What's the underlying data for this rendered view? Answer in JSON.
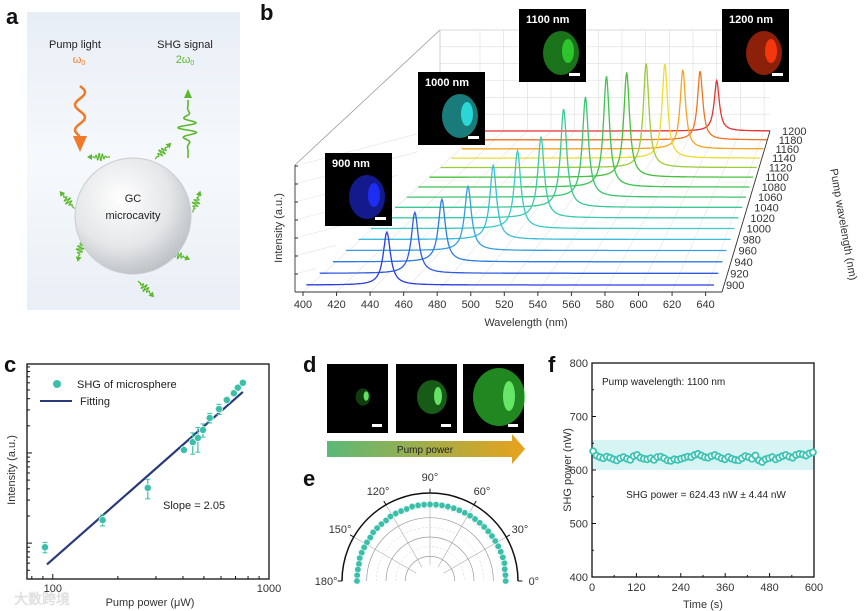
{
  "panel_labels": {
    "a": "a",
    "b": "b",
    "c": "c",
    "d": "d",
    "e": "e",
    "f": "f"
  },
  "panel_a": {
    "pump_label": "Pump light",
    "pump_symbol": "ω",
    "pump_sub": "0",
    "shg_label": "SHG signal",
    "shg_symbol": "2ω",
    "shg_sub": "0",
    "sphere_line1": "GC",
    "sphere_line2": "microcavity",
    "colors": {
      "pump": "#f07a2a",
      "shg": "#5cb82c",
      "background": "#eef3f8"
    }
  },
  "panel_d": {
    "arrow_label": "Pump power",
    "gradient": [
      "#5cb878",
      "#e8a21c"
    ],
    "image_intensity": [
      0.15,
      0.5,
      1.0
    ]
  },
  "watermark": "大数跨境",
  "chart_data": [
    {
      "id": "b",
      "type": "line",
      "subtype": "3d-waterfall",
      "xlabel": "Wavelength (nm)",
      "ylabel": "Pump wavelength (nm)",
      "zlabel": "Intensity (a.u.)",
      "x_ticks": [
        400,
        420,
        440,
        460,
        480,
        500,
        520,
        540,
        560,
        580,
        600,
        620,
        640
      ],
      "y_ticks": [
        900,
        920,
        940,
        960,
        980,
        1000,
        1020,
        1040,
        1060,
        1080,
        1100,
        1120,
        1140,
        1160,
        1180,
        1200
      ],
      "xlim": [
        400,
        645
      ],
      "series": [
        {
          "pump": 900,
          "peak_nm": 450,
          "intensity": 0.42,
          "color": "#2a3ee0"
        },
        {
          "pump": 920,
          "peak_nm": 460,
          "intensity": 0.49,
          "color": "#2d5ce2"
        },
        {
          "pump": 940,
          "peak_nm": 470,
          "intensity": 0.51,
          "color": "#2f7be2"
        },
        {
          "pump": 960,
          "peak_nm": 480,
          "intensity": 0.53,
          "color": "#389ee0"
        },
        {
          "pump": 980,
          "peak_nm": 490,
          "intensity": 0.62,
          "color": "#3bbcda"
        },
        {
          "pump": 1000,
          "peak_nm": 500,
          "intensity": 0.66,
          "color": "#3acbc8"
        },
        {
          "pump": 1020,
          "peak_nm": 510,
          "intensity": 0.7,
          "color": "#3ccbb0"
        },
        {
          "pump": 1040,
          "peak_nm": 520,
          "intensity": 0.86,
          "color": "#3cc894"
        },
        {
          "pump": 1060,
          "peak_nm": 530,
          "intensity": 0.89,
          "color": "#3cc470"
        },
        {
          "pump": 1080,
          "peak_nm": 540,
          "intensity": 1.0,
          "color": "#3ec252"
        },
        {
          "pump": 1100,
          "peak_nm": 550,
          "intensity": 0.96,
          "color": "#48c03c"
        },
        {
          "pump": 1120,
          "peak_nm": 560,
          "intensity": 0.97,
          "color": "#9ccc3a"
        },
        {
          "pump": 1140,
          "peak_nm": 570,
          "intensity": 0.89,
          "color": "#eedc2e"
        },
        {
          "pump": 1160,
          "peak_nm": 580,
          "intensity": 0.76,
          "color": "#f4a424"
        },
        {
          "pump": 1180,
          "peak_nm": 590,
          "intensity": 0.67,
          "color": "#ef7424"
        },
        {
          "pump": 1200,
          "peak_nm": 600,
          "intensity": 0.5,
          "color": "#e63232"
        }
      ],
      "insets": [
        {
          "label": "900 nm",
          "color": "#2030ff"
        },
        {
          "label": "1000 nm",
          "color": "#30e0e0"
        },
        {
          "label": "1100 nm",
          "color": "#30d030"
        },
        {
          "label": "1200 nm",
          "color": "#ff3a10"
        }
      ]
    },
    {
      "id": "c",
      "type": "scatter",
      "xlabel": "Pump power (μW)",
      "ylabel": "Intensity (a.u.)",
      "x_scale": "log",
      "y_scale": "log",
      "xlim": [
        76,
        1000
      ],
      "ylim": [
        0.4,
        97
      ],
      "x_ticks": [
        {
          "v": 100,
          "label": "100"
        },
        {
          "v": 1000,
          "label": "1000"
        }
      ],
      "legend": [
        {
          "label": "SHG of microsphere",
          "kind": "marker"
        },
        {
          "label": "Fitting",
          "kind": "line"
        }
      ],
      "legend_position": "top-left",
      "annotation": "Slope = 2.05",
      "points": [
        {
          "x": 92,
          "y": 0.9,
          "err": 0.12
        },
        {
          "x": 170,
          "y": 1.8,
          "err": 0.25
        },
        {
          "x": 275,
          "y": 4.1,
          "err": 1.0
        },
        {
          "x": 404,
          "y": 10.8,
          "err": 0.5
        },
        {
          "x": 444,
          "y": 13.2,
          "err": 3.5
        },
        {
          "x": 469,
          "y": 14.7,
          "err": 4.5
        },
        {
          "x": 495,
          "y": 18,
          "err": 3
        },
        {
          "x": 532,
          "y": 24.5,
          "err": 3
        },
        {
          "x": 587,
          "y": 30.7,
          "err": 4
        },
        {
          "x": 638,
          "y": 38.7,
          "err": 3
        },
        {
          "x": 688,
          "y": 46,
          "err": 3
        },
        {
          "x": 718,
          "y": 53,
          "err": 3
        },
        {
          "x": 757,
          "y": 60,
          "err": 3
        }
      ],
      "fit": {
        "x": [
          94,
          757
        ],
        "y": [
          0.58,
          47.5
        ]
      },
      "colors": {
        "marker": "#3bbfa8",
        "fit": "#2a3a78"
      }
    },
    {
      "id": "e",
      "type": "scatter",
      "subtype": "polar-half",
      "theta_ticks": [
        {
          "v": 0,
          "label": "0°"
        },
        {
          "v": 30,
          "label": "30°"
        },
        {
          "v": 60,
          "label": "60°"
        },
        {
          "v": 90,
          "label": "90°"
        },
        {
          "v": 120,
          "label": "120°"
        },
        {
          "v": 150,
          "label": "150°"
        },
        {
          "v": 180,
          "label": "180°"
        }
      ],
      "r_max": 1,
      "theta": [
        0,
        4.5,
        9,
        13.5,
        18,
        22.5,
        27,
        31.5,
        36,
        40.5,
        45,
        49.5,
        54,
        58.5,
        63,
        67.5,
        72,
        76.5,
        81,
        85.5,
        90,
        94.5,
        99,
        103.5,
        108,
        112.5,
        117,
        121.5,
        126,
        130.5,
        135,
        139.5,
        144,
        148.5,
        153,
        157.5,
        162,
        166.5,
        171,
        175.5,
        180
      ],
      "r": [
        0.86,
        0.86,
        0.86,
        0.87,
        0.87,
        0.87,
        0.87,
        0.87,
        0.87,
        0.87,
        0.87,
        0.87,
        0.87,
        0.87,
        0.87,
        0.87,
        0.87,
        0.87,
        0.87,
        0.87,
        0.87,
        0.87,
        0.87,
        0.87,
        0.86,
        0.86,
        0.86,
        0.86,
        0.85,
        0.85,
        0.85,
        0.85,
        0.84,
        0.84,
        0.84,
        0.84,
        0.84,
        0.83,
        0.83,
        0.83,
        0.83
      ],
      "color": "#3bbfa8"
    },
    {
      "id": "f",
      "type": "scatter",
      "xlabel": "Time (s)",
      "ylabel": "SHG power (nW)",
      "xlim": [
        0,
        600
      ],
      "ylim": [
        400,
        800
      ],
      "x_ticks": [
        0,
        120,
        240,
        360,
        480,
        600
      ],
      "y_ticks": [
        400,
        500,
        600,
        700,
        800
      ],
      "band": [
        600,
        656
      ],
      "annotation_top": "Pump wavelength: 1100 nm",
      "annotation": "SHG power = 624.43 nW ± 4.44 nW",
      "values": [
        635,
        627,
        624,
        622,
        625,
        623,
        620,
        618,
        622,
        624,
        621,
        619,
        626,
        628,
        623,
        621,
        620,
        622,
        619,
        624,
        625,
        622,
        618,
        617,
        620,
        619,
        621,
        623,
        625,
        624,
        628,
        630,
        627,
        624,
        623,
        626,
        628,
        625,
        622,
        620,
        624,
        621,
        619,
        618,
        622,
        626,
        624,
        621,
        627,
        618,
        615,
        620,
        622,
        624,
        620,
        623,
        626,
        628,
        625,
        623,
        628,
        630,
        629,
        627,
        631,
        633
      ],
      "colors": {
        "marker": "#3bc4b4",
        "band": "#d6f4f4"
      }
    }
  ]
}
